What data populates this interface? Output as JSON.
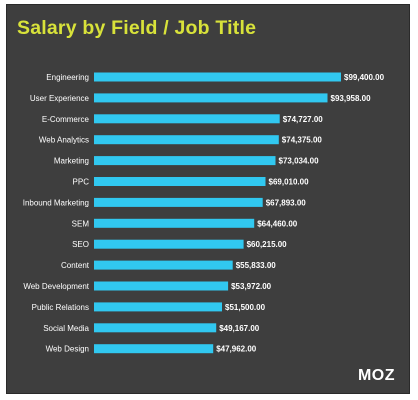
{
  "brand": "MOZ",
  "colors": {
    "background": "#3e3e3e",
    "title": "#d8e23a",
    "bar": "#31c8f0",
    "label": "#ffffff"
  },
  "chart_data": {
    "type": "bar",
    "orientation": "horizontal",
    "title": "Salary by Field / Job Title",
    "xlabel": "",
    "ylabel": "",
    "value_prefix": "$",
    "grid": false,
    "legend": "none",
    "categories": [
      "Engineering",
      "User Experience",
      "E-Commerce",
      "Web Analytics",
      "Marketing",
      "PPC",
      "Inbound Marketing",
      "SEM",
      "SEO",
      "Content",
      "Web Development",
      "Public Relations",
      "Social Media",
      "Web Design"
    ],
    "values": [
      99400,
      93958,
      74727,
      74375,
      73034,
      69010,
      67893,
      64460,
      60215,
      55833,
      53972,
      51500,
      49167,
      47962
    ],
    "value_labels": [
      "$99,400.00",
      "$93,958.00",
      "$74,727.00",
      "$74,375.00",
      "$73,034.00",
      "$69,010.00",
      "$67,893.00",
      "$64,460.00",
      "$60,215.00",
      "$55,833.00",
      "$53,972.00",
      "$51,500.00",
      "$49,167.00",
      "$47,962.00"
    ]
  }
}
